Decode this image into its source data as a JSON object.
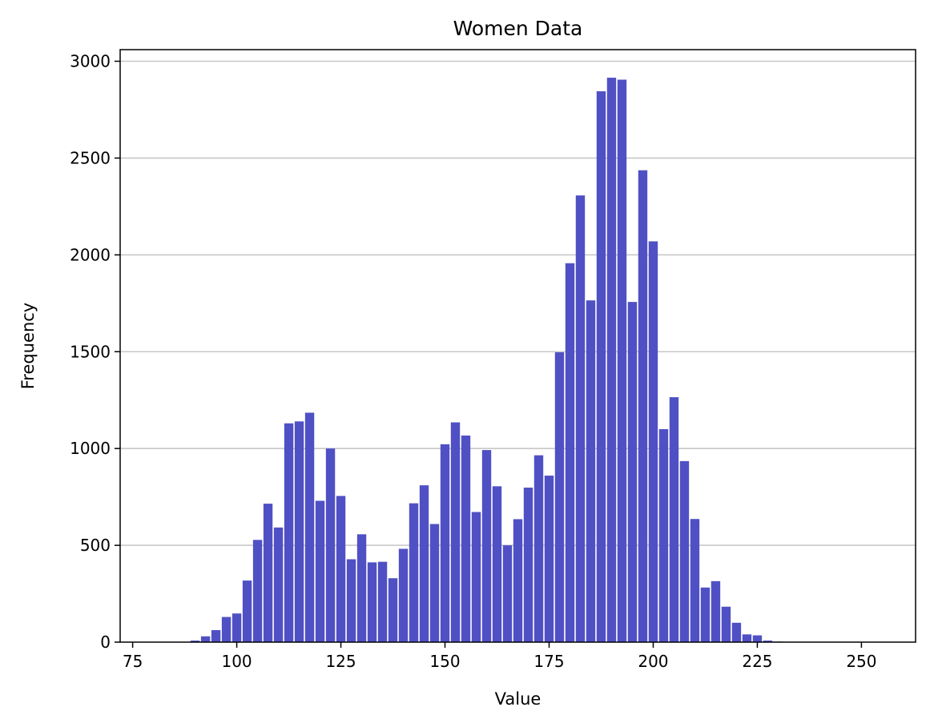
{
  "chart_data": {
    "type": "bar",
    "title": "Women Data",
    "xlabel": "Value",
    "ylabel": "Frequency",
    "bar_color": "#5050c5",
    "grid": "y",
    "xlim": [
      72,
      263
    ],
    "ylim": [
      0,
      3060
    ],
    "xticks": [
      75,
      100,
      125,
      150,
      175,
      200,
      225,
      250
    ],
    "yticks": [
      0,
      500,
      1000,
      1500,
      2000,
      2500,
      3000
    ],
    "bin_width": 2.5,
    "x": [
      77.5,
      80,
      82.5,
      85,
      87.5,
      90,
      92.5,
      95,
      97.5,
      100,
      102.5,
      105,
      107.5,
      110,
      112.5,
      115,
      117.5,
      120,
      122.5,
      125,
      127.5,
      130,
      132.5,
      135,
      137.5,
      140,
      142.5,
      145,
      147.5,
      150,
      152.5,
      155,
      157.5,
      160,
      162.5,
      165,
      167.5,
      170,
      172.5,
      175,
      177.5,
      180,
      182.5,
      185,
      187.5,
      190,
      192.5,
      195,
      197.5,
      200,
      202.5,
      205,
      207.5,
      210,
      212.5,
      215,
      217.5,
      220,
      222.5,
      225,
      227.5,
      230,
      232.5,
      235,
      237.5,
      240,
      242.5,
      245,
      247.5,
      250,
      252.5,
      255
    ],
    "values": [
      0,
      0,
      0,
      0,
      2,
      8,
      30,
      62,
      130,
      148,
      318,
      528,
      715,
      592,
      1130,
      1140,
      1185,
      730,
      1000,
      755,
      428,
      557,
      412,
      415,
      330,
      482,
      717,
      810,
      610,
      1022,
      1135,
      1067,
      672,
      992,
      805,
      500,
      635,
      798,
      965,
      860,
      1497,
      1957,
      2307,
      1765,
      2845,
      2915,
      2905,
      1757,
      2437,
      2070,
      1100,
      1265,
      935,
      636,
      282,
      315,
      183,
      100,
      40,
      35,
      8,
      3,
      2,
      1,
      1,
      0,
      0,
      0,
      0,
      0,
      0,
      0
    ]
  }
}
